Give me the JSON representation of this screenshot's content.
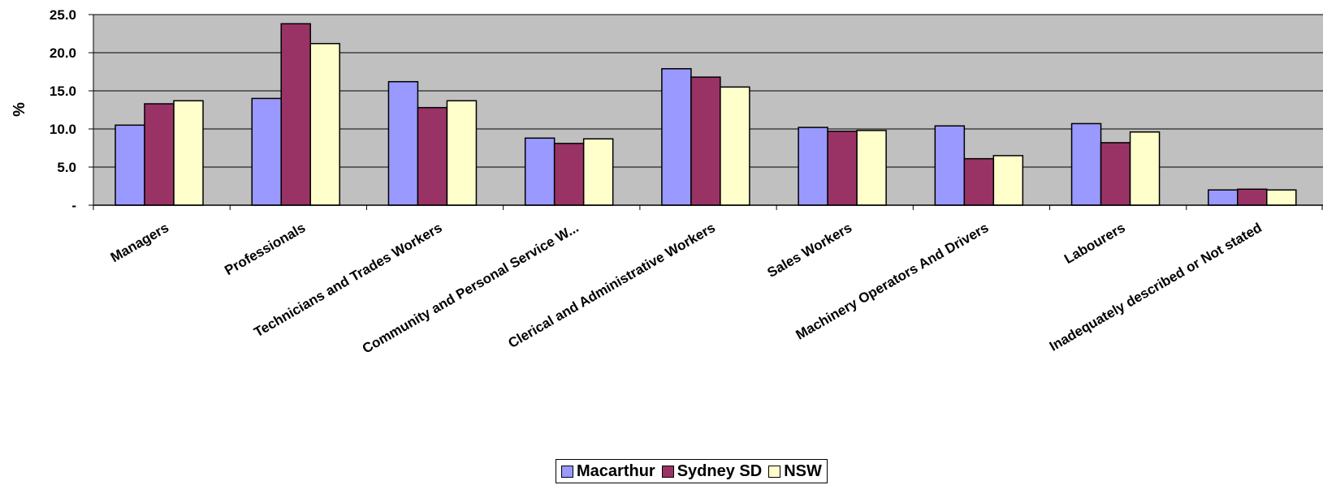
{
  "chart_data": {
    "type": "bar",
    "title": "",
    "xlabel": "",
    "ylabel": "%",
    "ylim": [
      0,
      25
    ],
    "yticks": [
      0,
      5,
      10,
      15,
      20,
      25
    ],
    "ytick_labels": [
      "-",
      "5.0",
      "10.0",
      "15.0",
      "20.0",
      "25.0"
    ],
    "grid": true,
    "legend_position": "bottom-center",
    "categories": [
      "Managers",
      "Professionals",
      "Technicians and Trades Workers",
      "Community and Personal Service W...",
      "Clerical and Administrative Workers",
      "Sales Workers",
      "Machinery Operators And Drivers",
      "Labourers",
      "Inadequately described or Not stated"
    ],
    "series": [
      {
        "name": "Macarthur",
        "color": "#9999ff",
        "values": [
          10.5,
          14.0,
          16.2,
          8.8,
          17.9,
          10.2,
          10.4,
          10.7,
          2.0
        ]
      },
      {
        "name": "Sydney SD",
        "color": "#993366",
        "values": [
          13.3,
          23.8,
          12.8,
          8.1,
          16.8,
          9.7,
          6.1,
          8.2,
          2.1
        ]
      },
      {
        "name": "NSW",
        "color": "#ffffcc",
        "values": [
          13.7,
          21.2,
          13.7,
          8.7,
          15.5,
          9.8,
          6.5,
          9.6,
          2.0
        ]
      }
    ],
    "colors": {
      "plot_background": "#c0c0c0",
      "gridline": "#000000"
    }
  }
}
